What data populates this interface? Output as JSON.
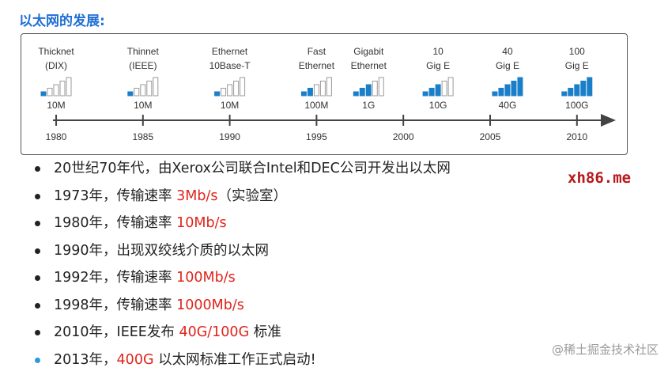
{
  "title": "以太网的发展:",
  "timeline": {
    "years": [
      "1980",
      "1985",
      "1990",
      "1995",
      "2000",
      "2005",
      "2010"
    ],
    "standards": [
      {
        "name_line1": "Thicknet",
        "name_line2": "(DIX)",
        "speed": "10M",
        "filled_bars": 1,
        "year_position": 1980
      },
      {
        "name_line1": "Thinnet",
        "name_line2": "(IEEE)",
        "speed": "10M",
        "filled_bars": 1,
        "year_position": 1985
      },
      {
        "name_line1": "Ethernet",
        "name_line2": "10Base-T",
        "speed": "10M",
        "filled_bars": 1,
        "year_position": 1990
      },
      {
        "name_line1": "Fast",
        "name_line2": "Ethernet",
        "speed": "100M",
        "filled_bars": 2,
        "year_position": 1995
      },
      {
        "name_line1": "Gigabit",
        "name_line2": "Ethernet",
        "speed": "1G",
        "filled_bars": 3,
        "year_position": 1998
      },
      {
        "name_line1": "10",
        "name_line2": "Gig E",
        "speed": "10G",
        "filled_bars": 3,
        "year_position": 2002
      },
      {
        "name_line1": "40",
        "name_line2": "Gig E",
        "speed": "40G",
        "filled_bars": 5,
        "year_position": 2006
      },
      {
        "name_line1": "100",
        "name_line2": "Gig E",
        "speed": "100G",
        "filled_bars": 5,
        "year_position": 2010
      }
    ],
    "bar_color": "#1a7fc8"
  },
  "bullets": [
    {
      "text": "20世纪70年代，由Xerox公司联合Intel和DEC公司开发出以太网",
      "highlight": "",
      "suffix": ""
    },
    {
      "text": "1973年，传输速率 ",
      "highlight": "3Mb/s",
      "suffix": "（实验室）"
    },
    {
      "text": "1980年，传输速率 ",
      "highlight": "10Mb/s",
      "suffix": ""
    },
    {
      "text": "1990年，出现双绞线介质的以太网",
      "highlight": "",
      "suffix": ""
    },
    {
      "text": "1992年，传输速率 ",
      "highlight": "100Mb/s",
      "suffix": ""
    },
    {
      "text": "1998年，传输速率 ",
      "highlight": "1000Mb/s",
      "suffix": ""
    },
    {
      "text": "2010年，IEEE发布 ",
      "highlight": "40G/100G",
      "suffix": " 标准"
    },
    {
      "text": "2013年，",
      "highlight": "400G",
      "suffix": " 以太网标准工作正式启动!"
    }
  ],
  "site_mark": "xh86.me",
  "watermark": "@稀土掘金技术社区"
}
